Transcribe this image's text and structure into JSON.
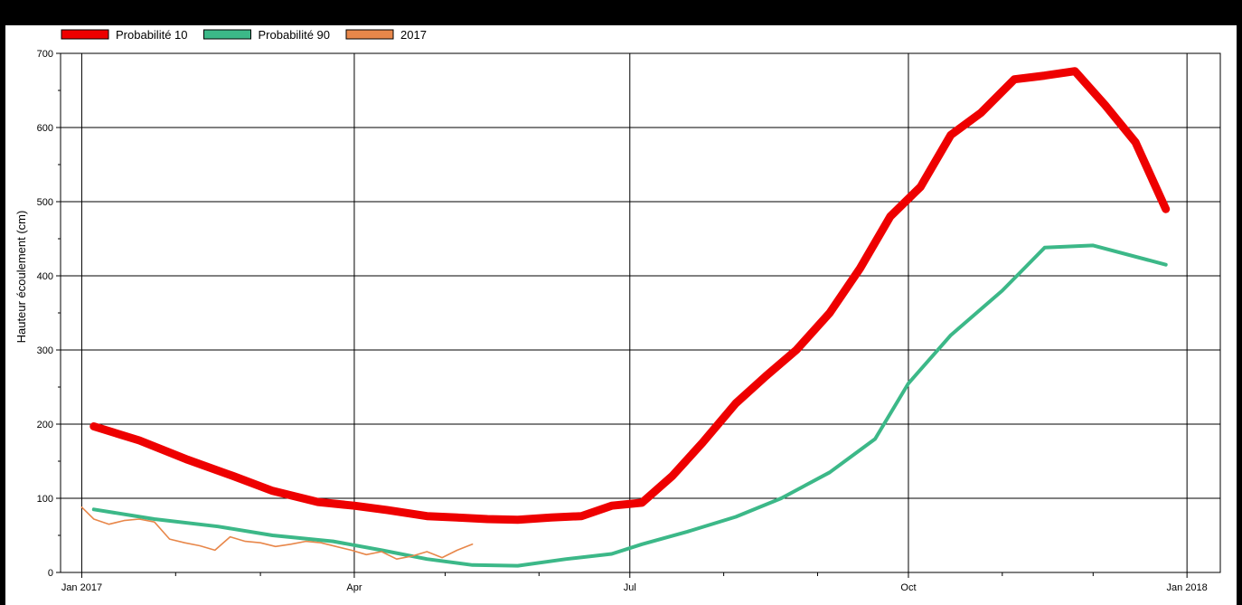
{
  "chart_data": {
    "type": "line",
    "title": "",
    "xlabel": "",
    "ylabel": "Hauteur écoulement (cm)",
    "ylim": [
      0,
      700
    ],
    "xlim": [
      "2016-12-25",
      "2018-01-12"
    ],
    "y_ticks": [
      0,
      100,
      200,
      300,
      400,
      500,
      600,
      700
    ],
    "x_ticks": [
      {
        "date": "2017-01-01",
        "label": "Jan 2017"
      },
      {
        "date": "2017-04-01",
        "label": "Apr"
      },
      {
        "date": "2017-07-01",
        "label": "Jul"
      },
      {
        "date": "2017-10-01",
        "label": "Oct"
      },
      {
        "date": "2018-01-01",
        "label": "Jan 2018"
      }
    ],
    "x_minor_ticks": [
      "2017-02-01",
      "2017-03-01",
      "2017-05-01",
      "2017-06-01",
      "2017-08-01",
      "2017-09-01",
      "2017-11-01",
      "2017-12-01"
    ],
    "grid": true,
    "legend_position": "top-left",
    "series": [
      {
        "name": "Probabilité 10",
        "color": "#ee0000",
        "x": [
          "2017-01-05",
          "2017-01-20",
          "2017-02-05",
          "2017-02-20",
          "2017-03-05",
          "2017-03-20",
          "2017-04-01",
          "2017-04-12",
          "2017-04-25",
          "2017-05-05",
          "2017-05-15",
          "2017-05-25",
          "2017-06-05",
          "2017-06-15",
          "2017-06-25",
          "2017-07-05",
          "2017-07-15",
          "2017-07-25",
          "2017-08-05",
          "2017-08-15",
          "2017-08-25",
          "2017-09-05",
          "2017-09-15",
          "2017-09-25",
          "2017-10-05",
          "2017-10-15",
          "2017-10-25",
          "2017-11-05",
          "2017-11-15",
          "2017-11-25",
          "2017-12-05",
          "2017-12-15",
          "2017-12-25"
        ],
        "values": [
          197,
          178,
          152,
          130,
          110,
          95,
          90,
          84,
          76,
          74,
          72,
          71,
          74,
          76,
          90,
          94,
          130,
          175,
          228,
          265,
          300,
          350,
          410,
          480,
          520,
          590,
          620,
          665,
          670,
          676,
          630,
          580,
          490
        ]
      },
      {
        "name": "Probabilité 90",
        "color": "#3cb888",
        "x": [
          "2017-01-05",
          "2017-01-25",
          "2017-02-15",
          "2017-03-05",
          "2017-03-25",
          "2017-04-10",
          "2017-04-25",
          "2017-05-10",
          "2017-05-25",
          "2017-06-10",
          "2017-06-25",
          "2017-07-05",
          "2017-07-20",
          "2017-08-05",
          "2017-08-20",
          "2017-09-05",
          "2017-09-20",
          "2017-10-01",
          "2017-10-15",
          "2017-11-01",
          "2017-11-15",
          "2017-12-01",
          "2017-12-25"
        ],
        "values": [
          85,
          72,
          62,
          50,
          42,
          30,
          18,
          10,
          9,
          18,
          25,
          38,
          55,
          75,
          100,
          135,
          180,
          255,
          320,
          380,
          438,
          441,
          415
        ]
      },
      {
        "name": "2017",
        "color": "#e8874a",
        "x": [
          "2017-01-01",
          "2017-01-05",
          "2017-01-10",
          "2017-01-15",
          "2017-01-20",
          "2017-01-25",
          "2017-01-30",
          "2017-02-04",
          "2017-02-09",
          "2017-02-14",
          "2017-02-19",
          "2017-02-24",
          "2017-03-01",
          "2017-03-06",
          "2017-03-11",
          "2017-03-16",
          "2017-03-21",
          "2017-03-26",
          "2017-03-31",
          "2017-04-05",
          "2017-04-10",
          "2017-04-15",
          "2017-04-20",
          "2017-04-25",
          "2017-04-30",
          "2017-05-05",
          "2017-05-10"
        ],
        "values": [
          88,
          72,
          65,
          70,
          72,
          68,
          45,
          40,
          36,
          30,
          48,
          42,
          40,
          35,
          38,
          42,
          40,
          35,
          30,
          24,
          28,
          18,
          22,
          28,
          20,
          30,
          38
        ]
      }
    ]
  }
}
